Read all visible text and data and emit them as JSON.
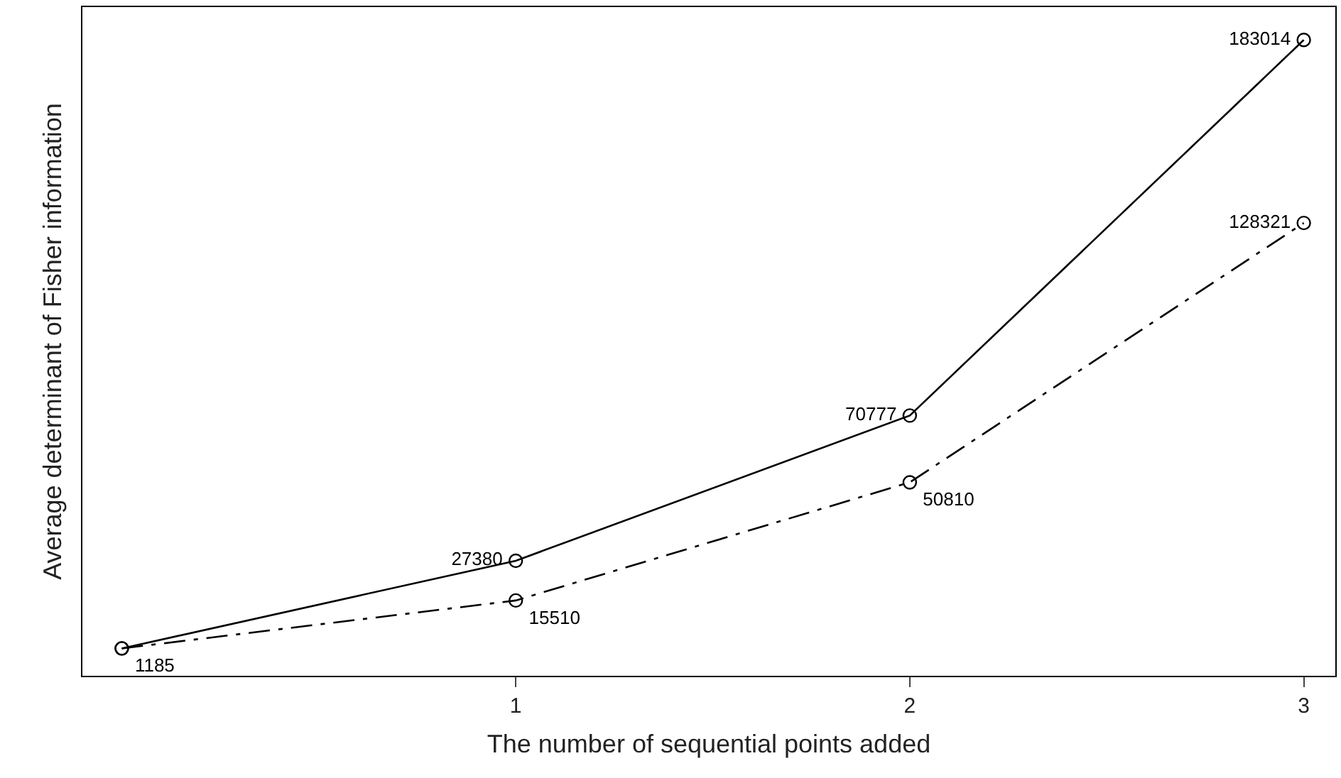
{
  "chart_data": {
    "type": "line",
    "xlabel": "The number of sequential points added",
    "ylabel": "Average determinant of Fisher information",
    "x": [
      0,
      1,
      2,
      3
    ],
    "xlim": [
      -0.1,
      3.08
    ],
    "xticks": [
      1,
      2,
      3
    ],
    "tick_labels": "x",
    "marker": "circle",
    "series": [
      {
        "color": "#000000",
        "line_style": "solid",
        "values": [
          1185,
          27380,
          70777,
          183014
        ],
        "value_labels": [
          null,
          "27380",
          "70777",
          "183014"
        ]
      },
      {
        "color": "#000000",
        "line_style": "dashed",
        "values": [
          1185,
          15510,
          50810,
          128321
        ],
        "value_labels": [
          "1185",
          "15510",
          "50810",
          "128321"
        ]
      }
    ]
  }
}
